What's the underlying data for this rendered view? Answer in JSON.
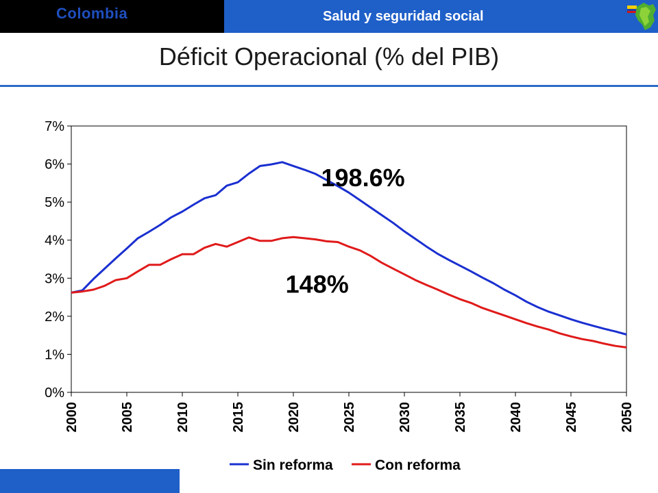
{
  "header": {
    "country": "Colombia",
    "section": "Salud y seguridad social",
    "logo_icon": "colombia-map-flag-icon"
  },
  "slide": {
    "title": "Déficit Operacional (% del PIB)"
  },
  "colors": {
    "header_left_bg": "#000000",
    "header_right_bg": "#1f5fc8",
    "sin_reforma": "#1a2fd0",
    "con_reforma": "#e01a1a"
  },
  "chart_data": {
    "type": "line",
    "title": "Déficit Operacional (% del PIB)",
    "xlabel": "",
    "ylabel": "",
    "xlim": [
      2000,
      2050
    ],
    "ylim": [
      0,
      7
    ],
    "x_ticks": [
      "2000",
      "2005",
      "2010",
      "2015",
      "2020",
      "2025",
      "2030",
      "2035",
      "2040",
      "2045",
      "2050"
    ],
    "y_ticks": [
      "0%",
      "1%",
      "2%",
      "3%",
      "4%",
      "5%",
      "6%",
      "7%"
    ],
    "grid": false,
    "legend_position": "bottom",
    "x": [
      2000,
      2001,
      2002,
      2003,
      2004,
      2005,
      2006,
      2007,
      2008,
      2009,
      2010,
      2011,
      2012,
      2013,
      2014,
      2015,
      2016,
      2017,
      2018,
      2019,
      2020,
      2021,
      2022,
      2023,
      2024,
      2025,
      2026,
      2027,
      2028,
      2029,
      2030,
      2031,
      2032,
      2033,
      2034,
      2035,
      2036,
      2037,
      2038,
      2039,
      2040,
      2041,
      2042,
      2043,
      2044,
      2045,
      2046,
      2047,
      2048,
      2049,
      2050
    ],
    "series": [
      {
        "name": "Sin reforma",
        "color": "#1a2fd0",
        "values": [
          2.62,
          2.68,
          2.98,
          3.25,
          3.52,
          3.78,
          4.05,
          4.22,
          4.4,
          4.6,
          4.75,
          4.93,
          5.1,
          5.18,
          5.43,
          5.52,
          5.75,
          5.95,
          5.99,
          6.05,
          5.95,
          5.85,
          5.74,
          5.58,
          5.42,
          5.25,
          5.05,
          4.85,
          4.65,
          4.45,
          4.23,
          4.03,
          3.83,
          3.64,
          3.48,
          3.33,
          3.18,
          3.02,
          2.87,
          2.7,
          2.55,
          2.38,
          2.24,
          2.12,
          2.02,
          1.92,
          1.83,
          1.75,
          1.67,
          1.6,
          1.52
        ]
      },
      {
        "name": "Con reforma",
        "color": "#e01a1a",
        "values": [
          2.62,
          2.65,
          2.7,
          2.8,
          2.95,
          3.0,
          3.18,
          3.35,
          3.35,
          3.5,
          3.63,
          3.63,
          3.8,
          3.9,
          3.83,
          3.95,
          4.07,
          3.98,
          3.98,
          4.05,
          4.08,
          4.05,
          4.02,
          3.97,
          3.95,
          3.83,
          3.73,
          3.58,
          3.4,
          3.25,
          3.1,
          2.95,
          2.82,
          2.7,
          2.57,
          2.45,
          2.35,
          2.22,
          2.12,
          2.02,
          1.92,
          1.82,
          1.73,
          1.65,
          1.55,
          1.47,
          1.4,
          1.35,
          1.28,
          1.22,
          1.18
        ]
      }
    ],
    "annotations": [
      {
        "text": "198.6%",
        "x": 2022.5,
        "y": 5.65
      },
      {
        "text": "148%",
        "x": 2019.3,
        "y": 2.85
      }
    ]
  }
}
